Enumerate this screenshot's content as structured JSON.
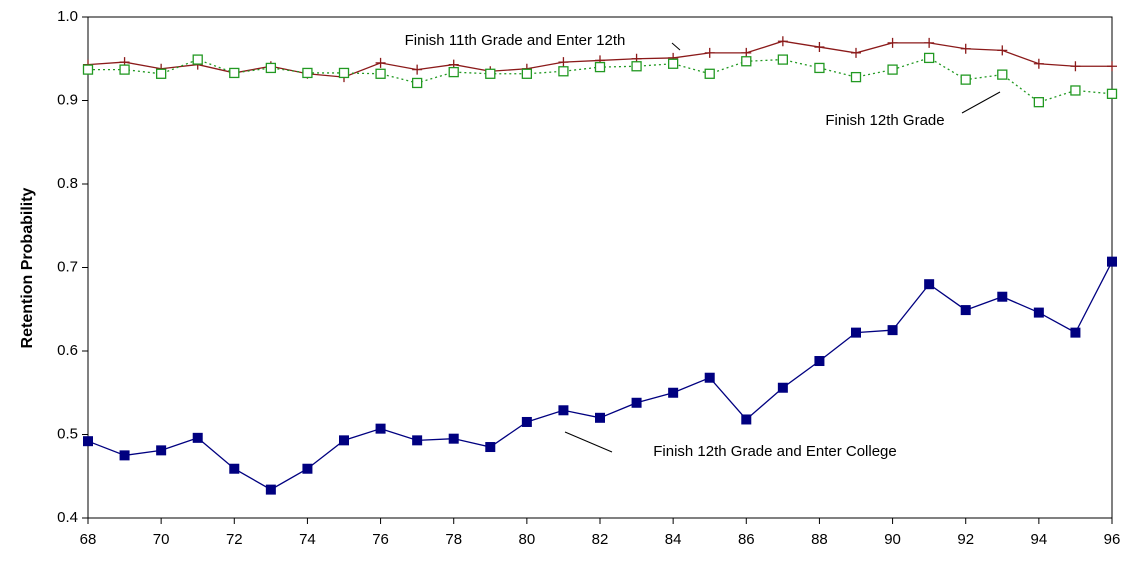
{
  "chart_data": {
    "type": "line",
    "y_label": "Retention Probability",
    "x": [
      68,
      69,
      70,
      71,
      72,
      73,
      74,
      75,
      76,
      77,
      78,
      79,
      80,
      81,
      82,
      83,
      84,
      85,
      86,
      87,
      88,
      89,
      90,
      91,
      92,
      93,
      94,
      95,
      96
    ],
    "xlim": [
      68,
      96
    ],
    "xticks": [
      68,
      70,
      72,
      74,
      76,
      78,
      80,
      82,
      84,
      86,
      88,
      90,
      92,
      94,
      96
    ],
    "ylim": [
      0.4,
      1.0
    ],
    "yticks": [
      0.4,
      0.5,
      0.6,
      0.7,
      0.8,
      0.9,
      {
        "value": 1.0,
        "label": "1.0"
      }
    ],
    "series": [
      {
        "name": "Finish 11th Grade and Enter 12th",
        "color": "#8b1a1a",
        "marker": "plus",
        "line_style": "solid",
        "values": [
          0.943,
          0.946,
          0.938,
          0.943,
          0.933,
          0.941,
          0.932,
          0.928,
          0.945,
          0.937,
          0.943,
          0.935,
          0.938,
          0.946,
          0.948,
          0.95,
          0.951,
          0.957,
          0.957,
          0.971,
          0.964,
          0.957,
          0.969,
          0.969,
          0.962,
          0.96,
          0.944,
          0.941,
          0.941
        ]
      },
      {
        "name": "Finish 12th Grade",
        "color": "#229922",
        "marker": "open-square",
        "line_style": "dotted",
        "values": [
          0.937,
          0.937,
          0.932,
          0.949,
          0.933,
          0.939,
          0.933,
          0.933,
          0.932,
          0.921,
          0.934,
          0.932,
          0.932,
          0.935,
          0.94,
          0.941,
          0.944,
          0.932,
          0.947,
          0.949,
          0.939,
          0.928,
          0.937,
          0.951,
          0.925,
          0.931,
          0.898,
          0.912,
          0.908
        ]
      },
      {
        "name": "Finish 12th Grade and Enter College",
        "color": "#000080",
        "marker": "filled-square",
        "line_style": "solid",
        "values": [
          0.492,
          0.475,
          0.481,
          0.496,
          0.459,
          0.434,
          0.459,
          0.493,
          0.507,
          0.493,
          0.495,
          0.485,
          0.515,
          0.529,
          0.52,
          0.538,
          0.55,
          0.568,
          0.518,
          0.556,
          0.588,
          0.622,
          0.625,
          0.68,
          0.649,
          0.665,
          0.646,
          0.622,
          0.707
        ]
      }
    ]
  }
}
